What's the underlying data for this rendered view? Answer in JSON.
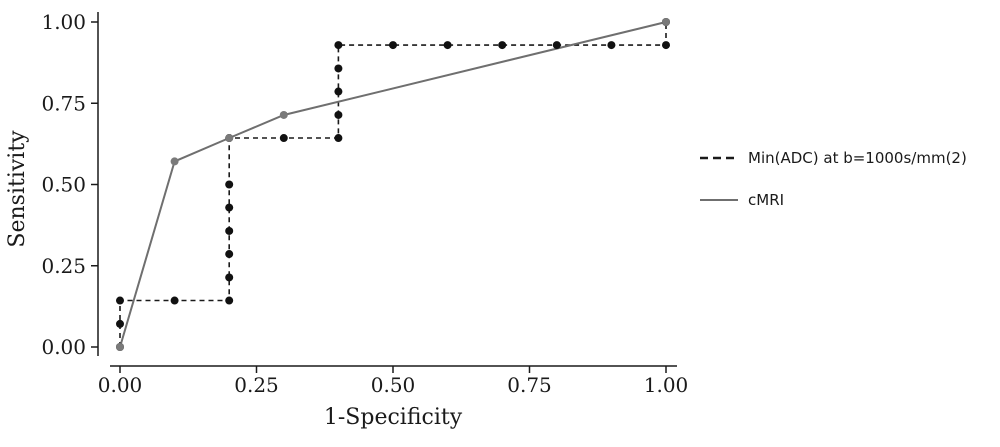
{
  "chart_data": {
    "type": "line",
    "xlabel": "1-Specificity",
    "ylabel": "Sensitivity",
    "xlim": [
      0,
      1
    ],
    "ylim": [
      0,
      1
    ],
    "x_ticks": [
      "0.00",
      "0.25",
      "0.50",
      "0.75",
      "1.00"
    ],
    "y_ticks": [
      "0.00",
      "0.25",
      "0.50",
      "0.75",
      "1.00"
    ],
    "grid": false,
    "legend_position": "right",
    "series": [
      {
        "name": "Min(ADC) at b=1000s/mm(2)",
        "style": "dashed",
        "color": "#1a1a1a",
        "points": [
          [
            0,
            0
          ],
          [
            0,
            0.071
          ],
          [
            0,
            0.143
          ],
          [
            0.1,
            0.143
          ],
          [
            0.2,
            0.143
          ],
          [
            0.2,
            0.214
          ],
          [
            0.2,
            0.286
          ],
          [
            0.2,
            0.357
          ],
          [
            0.2,
            0.429
          ],
          [
            0.2,
            0.5
          ],
          [
            0.2,
            0.643
          ],
          [
            0.3,
            0.643
          ],
          [
            0.4,
            0.643
          ],
          [
            0.4,
            0.714
          ],
          [
            0.4,
            0.786
          ],
          [
            0.4,
            0.857
          ],
          [
            0.4,
            0.929
          ],
          [
            0.5,
            0.929
          ],
          [
            0.6,
            0.929
          ],
          [
            0.7,
            0.929
          ],
          [
            0.8,
            0.929
          ],
          [
            0.9,
            0.929
          ],
          [
            1.0,
            0.929
          ],
          [
            1.0,
            1.0
          ]
        ]
      },
      {
        "name": "cMRI",
        "style": "solid",
        "color": "#6f6f6f",
        "points": [
          [
            0,
            0
          ],
          [
            0.1,
            0.571
          ],
          [
            0.2,
            0.643
          ],
          [
            0.3,
            0.714
          ],
          [
            1.0,
            1.0
          ]
        ]
      }
    ]
  }
}
